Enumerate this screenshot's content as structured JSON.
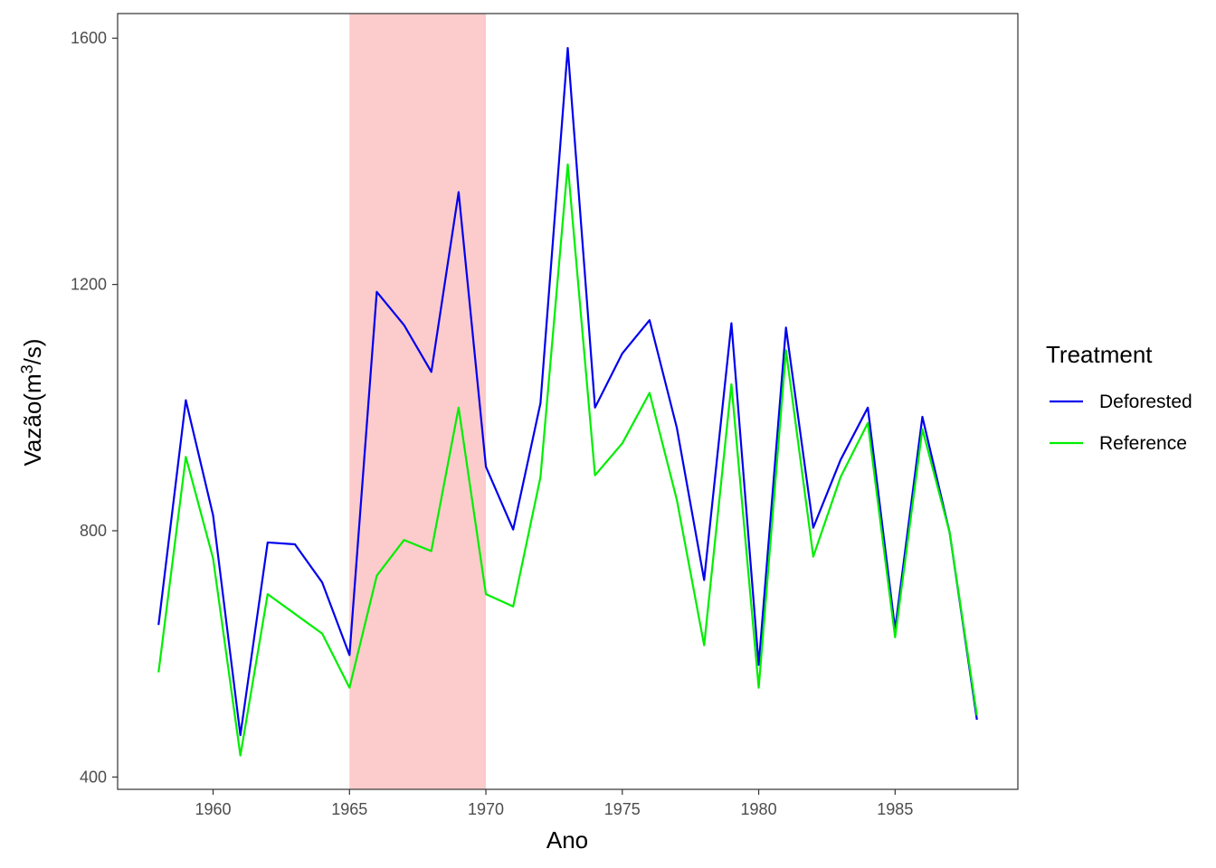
{
  "chart_data": {
    "type": "line",
    "xlabel": "Ano",
    "ylabel_main": "Vazão(m",
    "ylabel_sup": "3",
    "ylabel_end": "/s)",
    "xlim": [
      1956.5,
      1989.5
    ],
    "ylim": [
      380,
      1640
    ],
    "x_ticks": [
      1960,
      1965,
      1970,
      1975,
      1980,
      1985
    ],
    "y_ticks": [
      400,
      800,
      1200,
      1600
    ],
    "shaded_region": {
      "x_start": 1965,
      "x_end": 1970,
      "color": "#fccbcb"
    },
    "legend": {
      "title": "Treatment",
      "position": "right"
    },
    "x": [
      1958,
      1959,
      1960,
      1961,
      1962,
      1963,
      1964,
      1965,
      1966,
      1967,
      1968,
      1969,
      1970,
      1971,
      1972,
      1973,
      1974,
      1975,
      1976,
      1977,
      1978,
      1979,
      1980,
      1981,
      1982,
      1983,
      1984,
      1985,
      1986,
      1987,
      1988
    ],
    "series": [
      {
        "name": "Deforested",
        "color": "#0000ee",
        "values": [
          647,
          1012,
          825,
          468,
          781,
          778,
          716,
          598,
          1188,
          1134,
          1058,
          1350,
          904,
          802,
          1007,
          1584,
          1000,
          1088,
          1142,
          967,
          720,
          1137,
          582,
          1130,
          805,
          915,
          1000,
          640,
          985,
          797,
          493
        ]
      },
      {
        "name": "Reference",
        "color": "#00ee00",
        "values": [
          570,
          920,
          755,
          435,
          697,
          665,
          633,
          545,
          727,
          785,
          767,
          1000,
          697,
          677,
          887,
          1395,
          890,
          942,
          1024,
          850,
          614,
          1038,
          545,
          1093,
          758,
          887,
          975,
          627,
          965,
          797,
          500
        ]
      }
    ]
  }
}
